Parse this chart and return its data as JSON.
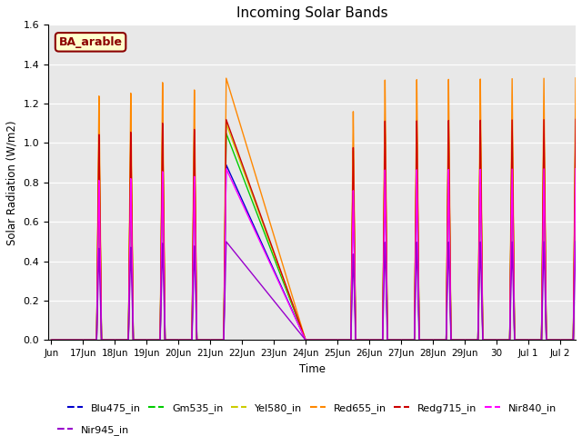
{
  "title": "Incoming Solar Bands",
  "xlabel": "Time",
  "ylabel": "Solar Radiation (W/m2)",
  "ylim": [
    0.0,
    1.6
  ],
  "background_color": "#e8e8e8",
  "annotation_text": "BA_arable",
  "annotation_bg": "#ffffcc",
  "annotation_border": "#8b0000",
  "legend_entries": [
    {
      "label": "Blu475_in",
      "color": "#0000cc"
    },
    {
      "label": "Gm535_in",
      "color": "#00cc00"
    },
    {
      "label": "Yel580_in",
      "color": "#cccc00"
    },
    {
      "label": "Red655_in",
      "color": "#ff8800"
    },
    {
      "label": "Redg715_in",
      "color": "#cc0000"
    },
    {
      "label": "Nir840_in",
      "color": "#ff00ff"
    },
    {
      "label": "Nir945_in",
      "color": "#9900cc"
    }
  ],
  "band_colors": {
    "Blu475_in": "#0000cc",
    "Gm535_in": "#00cc00",
    "Yel580_in": "#cccc00",
    "Red655_in": "#ff8800",
    "Redg715_in": "#cc0000",
    "Nir840_in": "#ff00ff",
    "Nir945_in": "#9900cc"
  },
  "band_peak_ratios": {
    "Blu475_in": 0.89,
    "Gm535_in": 1.05,
    "Yel580_in": 1.1,
    "Red655_in": 1.33,
    "Redg715_in": 1.12,
    "Nir840_in": 0.87,
    "Nir945_in": 0.5
  },
  "day_scales": {
    "17": 0.95,
    "18": 0.96,
    "19": 1.0,
    "20": 0.97,
    "25": 0.88,
    "26": 1.0,
    "27": 1.0,
    "28": 1.0,
    "29": 1.0,
    "30": 1.0,
    "31": 1.0
  },
  "x_tick_labels": [
    "Jun",
    "17Jun",
    "18Jun",
    "19Jun",
    "20Jun",
    "21Jun",
    "22Jun",
    "23Jun",
    "24Jun",
    "25Jun",
    "26Jun",
    "27Jun",
    "28Jun",
    "29Jun",
    "30",
    "Jul 1",
    "Jul 2"
  ],
  "yticks": [
    0.0,
    0.2,
    0.4,
    0.6,
    0.8,
    1.0,
    1.2,
    1.4,
    1.6
  ]
}
